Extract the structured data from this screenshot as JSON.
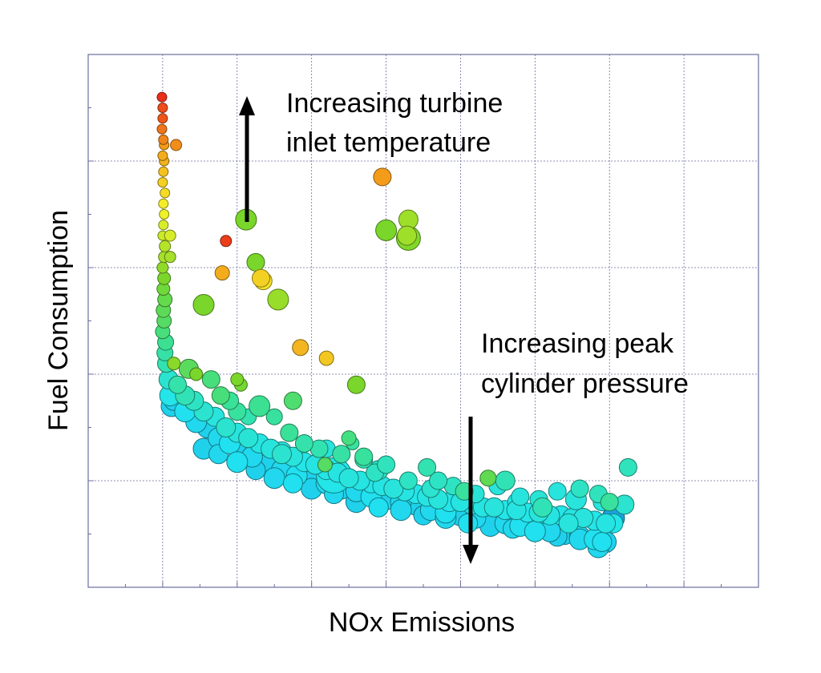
{
  "chart_data": {
    "type": "scatter",
    "xlabel": "NOx Emissions",
    "ylabel": "Fuel Consumption",
    "xlim": [
      0,
      9
    ],
    "ylim": [
      0,
      10
    ],
    "grid": true,
    "x_ticks": [
      1,
      2,
      3,
      4,
      5,
      6,
      7,
      8,
      9
    ],
    "y_ticks": [
      2,
      4,
      6,
      8,
      10
    ],
    "annotations": [
      {
        "text_lines": [
          "Increasing turbine",
          "inlet temperature"
        ],
        "arrow": "up"
      },
      {
        "text_lines": [
          "Increasing peak",
          "cylinder pressure"
        ],
        "arrow": "down"
      }
    ],
    "color_scale": [
      "#1565d8",
      "#22e5f0",
      "#3ee08a",
      "#7ad62a",
      "#f3f32a",
      "#f39a1a",
      "#e8161a"
    ],
    "points": [
      [
        0.99,
        9.2,
        0.97,
        6
      ],
      [
        1.0,
        9.0,
        0.93,
        6
      ],
      [
        1.0,
        8.8,
        0.92,
        6
      ],
      [
        0.99,
        8.6,
        0.88,
        6
      ],
      [
        1.01,
        8.4,
        0.86,
        6
      ],
      [
        1.02,
        8.3,
        0.83,
        6
      ],
      [
        1.0,
        8.1,
        0.8,
        6
      ],
      [
        1.02,
        8.0,
        0.79,
        6
      ],
      [
        1.01,
        7.8,
        0.76,
        6
      ],
      [
        1.0,
        7.6,
        0.73,
        6
      ],
      [
        1.03,
        7.4,
        0.71,
        6
      ],
      [
        1.01,
        7.2,
        0.68,
        6
      ],
      [
        1.02,
        7.0,
        0.66,
        6
      ],
      [
        1.01,
        6.8,
        0.63,
        6
      ],
      [
        1.0,
        6.6,
        0.61,
        6
      ],
      [
        1.03,
        6.4,
        0.58,
        7
      ],
      [
        1.02,
        6.2,
        0.56,
        7
      ],
      [
        1.0,
        6.0,
        0.53,
        7
      ],
      [
        1.02,
        5.8,
        0.5,
        8
      ],
      [
        1.01,
        5.6,
        0.47,
        8
      ],
      [
        1.03,
        5.4,
        0.44,
        9
      ],
      [
        1.01,
        5.2,
        0.42,
        9
      ],
      [
        1.02,
        5.0,
        0.4,
        9
      ],
      [
        1.0,
        4.8,
        0.36,
        9
      ],
      [
        1.04,
        4.6,
        0.32,
        10
      ],
      [
        1.03,
        4.4,
        0.29,
        10
      ],
      [
        1.05,
        4.2,
        0.27,
        11
      ],
      [
        1.08,
        3.9,
        0.22,
        12
      ],
      [
        1.1,
        3.6,
        0.18,
        13
      ],
      [
        1.12,
        3.4,
        0.14,
        13
      ],
      [
        1.18,
        8.3,
        0.85,
        7
      ],
      [
        1.1,
        6.6,
        0.63,
        7
      ],
      [
        1.1,
        6.2,
        0.56,
        7
      ],
      [
        1.85,
        6.5,
        0.95,
        7
      ],
      [
        1.8,
        5.9,
        0.8,
        9
      ],
      [
        3.95,
        7.7,
        0.83,
        11
      ],
      [
        4.3,
        6.9,
        0.55,
        12
      ],
      [
        2.12,
        6.9,
        0.5,
        13
      ],
      [
        4.0,
        6.7,
        0.5,
        13
      ],
      [
        4.3,
        6.55,
        0.51,
        15
      ],
      [
        4.28,
        6.6,
        0.55,
        12
      ],
      [
        2.25,
        6.1,
        0.5,
        11
      ],
      [
        2.32,
        5.8,
        0.73,
        11
      ],
      [
        2.35,
        5.75,
        0.7,
        11
      ],
      [
        2.55,
        5.4,
        0.54,
        13
      ],
      [
        1.55,
        5.3,
        0.5,
        13
      ],
      [
        2.85,
        4.5,
        0.78,
        10
      ],
      [
        3.2,
        4.3,
        0.75,
        9
      ],
      [
        1.15,
        4.2,
        0.52,
        8
      ],
      [
        1.45,
        4.0,
        0.5,
        8
      ],
      [
        2.0,
        3.9,
        0.5,
        8
      ],
      [
        2.05,
        3.8,
        0.48,
        8
      ],
      [
        2.75,
        3.5,
        0.38,
        11
      ],
      [
        3.6,
        3.8,
        0.5,
        11
      ],
      [
        3.55,
        2.7,
        0.3,
        8
      ],
      [
        3.3,
        2.1,
        0.18,
        22
      ],
      [
        3.18,
        2.3,
        0.4,
        9
      ],
      [
        3.5,
        2.8,
        0.35,
        9
      ],
      [
        5.37,
        2.05,
        0.43,
        10
      ],
      [
        7.25,
        2.25,
        0.25,
        11
      ],
      [
        6.55,
        1.65,
        0.2,
        13
      ],
      [
        7.05,
        1.3,
        0.08,
        14
      ],
      [
        1.35,
        4.1,
        0.41,
        12
      ],
      [
        1.65,
        3.9,
        0.36,
        11
      ],
      [
        1.78,
        3.6,
        0.36,
        11
      ],
      [
        1.9,
        3.5,
        0.31,
        11
      ],
      [
        2.0,
        3.3,
        0.3,
        11
      ],
      [
        2.15,
        3.2,
        0.27,
        10
      ],
      [
        2.3,
        3.4,
        0.32,
        13
      ],
      [
        2.5,
        3.2,
        0.3,
        10
      ],
      [
        2.7,
        2.9,
        0.31,
        11
      ],
      [
        2.9,
        2.7,
        0.28,
        11
      ],
      [
        3.1,
        2.6,
        0.27,
        11
      ],
      [
        3.4,
        2.5,
        0.29,
        11
      ],
      [
        3.7,
        2.4,
        0.27,
        11
      ],
      [
        4.0,
        2.3,
        0.25,
        11
      ],
      [
        4.3,
        2.0,
        0.24,
        11
      ],
      [
        4.6,
        1.85,
        0.22,
        11
      ],
      [
        4.9,
        1.9,
        0.24,
        11
      ],
      [
        5.2,
        1.75,
        0.21,
        11
      ],
      [
        5.5,
        1.9,
        0.2,
        11
      ],
      [
        5.8,
        1.7,
        0.2,
        11
      ],
      [
        6.05,
        1.65,
        0.21,
        11
      ],
      [
        6.3,
        1.8,
        0.2,
        11
      ],
      [
        6.6,
        1.85,
        0.24,
        11
      ],
      [
        6.9,
        1.6,
        0.2,
        11
      ],
      [
        5.75,
        1.6,
        0.19,
        11
      ],
      [
        4.55,
        2.25,
        0.27,
        11
      ],
      [
        3.85,
        2.15,
        0.24,
        11
      ],
      [
        1.2,
        3.8,
        0.28,
        11
      ],
      [
        1.3,
        3.6,
        0.26,
        12
      ],
      [
        1.42,
        3.5,
        0.24,
        12
      ],
      [
        1.55,
        3.3,
        0.22,
        12
      ],
      [
        1.7,
        3.2,
        0.2,
        12
      ],
      [
        1.85,
        3.0,
        0.22,
        12
      ],
      [
        2.0,
        2.9,
        0.2,
        12
      ],
      [
        2.15,
        2.8,
        0.21,
        12
      ],
      [
        2.3,
        2.7,
        0.19,
        12
      ],
      [
        2.45,
        2.6,
        0.2,
        12
      ],
      [
        2.6,
        2.55,
        0.19,
        12
      ],
      [
        2.75,
        2.45,
        0.2,
        12
      ],
      [
        2.9,
        2.35,
        0.18,
        12
      ],
      [
        3.05,
        2.3,
        0.19,
        12
      ],
      [
        3.2,
        2.2,
        0.18,
        12
      ],
      [
        3.35,
        2.15,
        0.19,
        12
      ],
      [
        3.5,
        2.05,
        0.2,
        12
      ],
      [
        3.65,
        2.0,
        0.19,
        12
      ],
      [
        3.8,
        1.95,
        0.18,
        12
      ],
      [
        3.95,
        1.9,
        0.19,
        12
      ],
      [
        4.1,
        1.85,
        0.2,
        12
      ],
      [
        4.25,
        1.8,
        0.19,
        12
      ],
      [
        4.4,
        1.75,
        0.18,
        12
      ],
      [
        4.55,
        1.7,
        0.19,
        12
      ],
      [
        4.7,
        1.65,
        0.2,
        12
      ],
      [
        4.85,
        1.6,
        0.18,
        12
      ],
      [
        5.0,
        1.6,
        0.19,
        12
      ],
      [
        5.15,
        1.55,
        0.18,
        12
      ],
      [
        5.3,
        1.5,
        0.19,
        12
      ],
      [
        5.45,
        1.5,
        0.2,
        12
      ],
      [
        5.6,
        1.45,
        0.18,
        12
      ],
      [
        5.75,
        1.45,
        0.19,
        12
      ],
      [
        5.9,
        1.4,
        0.18,
        12
      ],
      [
        6.05,
        1.4,
        0.2,
        12
      ],
      [
        6.2,
        1.35,
        0.19,
        12
      ],
      [
        6.35,
        1.35,
        0.18,
        12
      ],
      [
        6.5,
        1.3,
        0.19,
        12
      ],
      [
        6.65,
        1.3,
        0.2,
        12
      ],
      [
        6.8,
        1.25,
        0.18,
        12
      ],
      [
        6.95,
        1.2,
        0.19,
        12
      ],
      [
        7.05,
        1.2,
        0.18,
        12
      ],
      [
        1.15,
        3.5,
        0.14,
        12
      ],
      [
        1.3,
        3.3,
        0.16,
        13
      ],
      [
        1.45,
        3.1,
        0.15,
        13
      ],
      [
        1.6,
        3.0,
        0.14,
        13
      ],
      [
        1.75,
        2.8,
        0.15,
        13
      ],
      [
        1.9,
        2.7,
        0.16,
        13
      ],
      [
        2.05,
        2.55,
        0.14,
        13
      ],
      [
        2.2,
        2.45,
        0.15,
        13
      ],
      [
        2.4,
        2.3,
        0.14,
        13
      ],
      [
        2.6,
        2.2,
        0.15,
        13
      ],
      [
        2.8,
        2.1,
        0.16,
        13
      ],
      [
        3.0,
        2.0,
        0.14,
        13
      ],
      [
        3.2,
        1.95,
        0.15,
        13
      ],
      [
        3.4,
        1.85,
        0.14,
        13
      ],
      [
        3.6,
        1.8,
        0.15,
        13
      ],
      [
        3.8,
        1.7,
        0.16,
        13
      ],
      [
        4.0,
        1.65,
        0.14,
        13
      ],
      [
        4.2,
        1.6,
        0.15,
        13
      ],
      [
        4.4,
        1.55,
        0.14,
        13
      ],
      [
        4.6,
        1.45,
        0.15,
        13
      ],
      [
        4.8,
        1.4,
        0.16,
        13
      ],
      [
        5.0,
        1.35,
        0.14,
        13
      ],
      [
        5.2,
        1.3,
        0.15,
        13
      ],
      [
        5.4,
        1.25,
        0.14,
        13
      ],
      [
        5.6,
        1.2,
        0.15,
        13
      ],
      [
        5.8,
        1.15,
        0.16,
        13
      ],
      [
        6.0,
        1.1,
        0.14,
        13
      ],
      [
        6.2,
        1.05,
        0.15,
        13
      ],
      [
        6.4,
        1.0,
        0.14,
        13
      ],
      [
        6.6,
        0.95,
        0.15,
        13
      ],
      [
        6.8,
        0.9,
        0.16,
        13
      ],
      [
        6.95,
        0.85,
        0.14,
        13
      ],
      [
        6.85,
        0.75,
        0.15,
        13
      ],
      [
        1.55,
        2.6,
        0.14,
        13
      ],
      [
        1.75,
        2.5,
        0.15,
        12
      ],
      [
        2.0,
        2.35,
        0.16,
        13
      ],
      [
        2.25,
        2.2,
        0.14,
        12
      ],
      [
        2.5,
        2.05,
        0.15,
        13
      ],
      [
        2.75,
        1.95,
        0.16,
        12
      ],
      [
        3.0,
        1.85,
        0.14,
        13
      ],
      [
        3.3,
        1.75,
        0.15,
        12
      ],
      [
        3.6,
        1.6,
        0.14,
        13
      ],
      [
        3.9,
        1.5,
        0.16,
        12
      ],
      [
        4.2,
        1.45,
        0.15,
        13
      ],
      [
        4.5,
        1.35,
        0.14,
        12
      ],
      [
        4.8,
        1.3,
        0.15,
        13
      ],
      [
        5.1,
        1.2,
        0.16,
        12
      ],
      [
        5.4,
        1.15,
        0.14,
        13
      ],
      [
        5.7,
        1.1,
        0.15,
        12
      ],
      [
        6.0,
        1.05,
        0.16,
        13
      ],
      [
        6.3,
        0.95,
        0.14,
        12
      ],
      [
        6.6,
        0.9,
        0.15,
        13
      ],
      [
        6.9,
        0.85,
        0.16,
        12
      ],
      [
        2.6,
        2.5,
        0.22,
        12
      ],
      [
        3.2,
        2.6,
        0.2,
        11
      ],
      [
        3.9,
        2.2,
        0.23,
        12
      ],
      [
        4.7,
        2.0,
        0.24,
        11
      ],
      [
        5.6,
        2.0,
        0.26,
        12
      ],
      [
        6.1,
        1.5,
        0.26,
        12
      ],
      [
        7.0,
        1.6,
        0.3,
        11
      ],
      [
        5.05,
        1.8,
        0.3,
        11
      ],
      [
        3.7,
        2.45,
        0.3,
        11
      ],
      [
        6.85,
        1.75,
        0.25,
        11
      ],
      [
        7.2,
        1.55,
        0.22,
        12
      ],
      [
        6.45,
        1.2,
        0.2,
        12
      ]
    ]
  }
}
